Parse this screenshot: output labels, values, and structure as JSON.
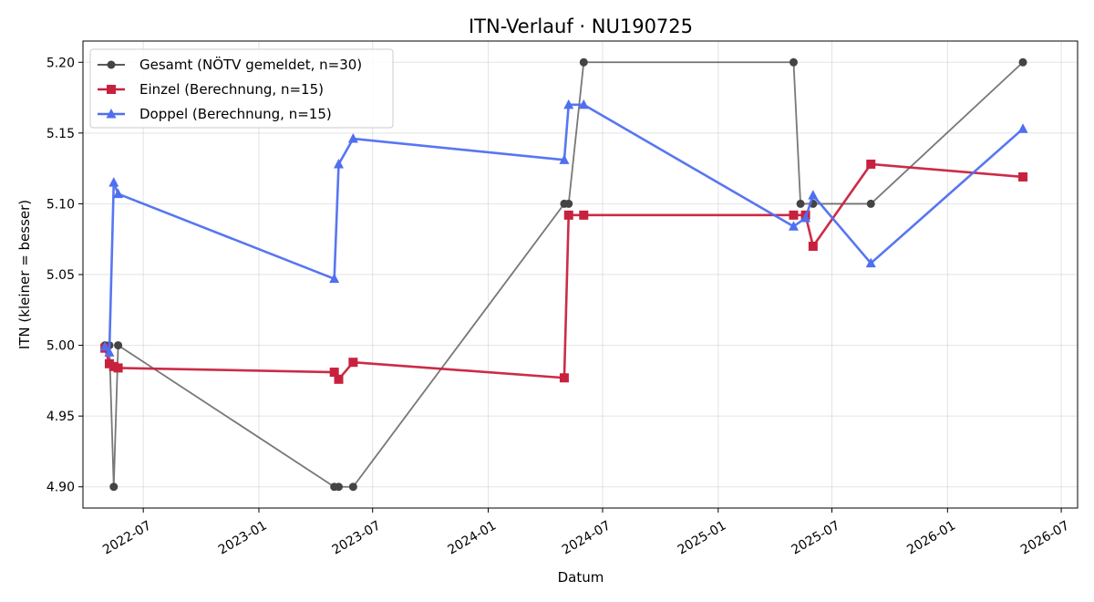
{
  "chart_data": {
    "type": "line",
    "title": "ITN-Verlauf · NU190725",
    "xlabel": "Datum",
    "ylabel": "ITN  (kleiner = besser)",
    "grid": true,
    "legend": "top-left",
    "x_ticks": [
      "2022-07",
      "2023-01",
      "2023-07",
      "2024-01",
      "2024-07",
      "2025-01",
      "2025-07",
      "2026-01",
      "2026-07"
    ],
    "y_ticks": [
      "4.90",
      "4.95",
      "5.00",
      "5.05",
      "5.10",
      "5.15",
      "5.20"
    ],
    "xlim": [
      "2022-03-27",
      "2026-07-27"
    ],
    "ylim": [
      4.885,
      5.215
    ],
    "series": [
      {
        "name": "Gesamt (NÖTV gemeldet, n=30)",
        "color": "#444444",
        "marker": "circle",
        "x": [
          "2022-05-01",
          "2022-05-08",
          "2022-05-15",
          "2022-05-22",
          "2023-05-01",
          "2023-05-08",
          "2023-05-31",
          "2024-05-01",
          "2024-05-08",
          "2024-06-01",
          "2025-05-01",
          "2025-05-12",
          "2025-06-01",
          "2025-09-01",
          "2026-05-01"
        ],
        "y": [
          5.0,
          5.0,
          4.9,
          5.0,
          4.9,
          4.9,
          4.9,
          5.1,
          5.1,
          5.2,
          5.2,
          5.1,
          5.1,
          5.1,
          5.2
        ]
      },
      {
        "name": "Einzel (Berechnung, n=15)",
        "color": "#c8213e",
        "marker": "square",
        "x": [
          "2022-05-01",
          "2022-05-08",
          "2022-05-15",
          "2022-05-22",
          "2023-05-01",
          "2023-05-08",
          "2023-05-31",
          "2024-05-01",
          "2024-05-08",
          "2024-06-01",
          "2025-05-01",
          "2025-05-20",
          "2025-06-01",
          "2025-09-01",
          "2026-05-01"
        ],
        "y": [
          4.998,
          4.987,
          4.985,
          4.984,
          4.981,
          4.976,
          4.988,
          4.977,
          5.092,
          5.092,
          5.092,
          5.092,
          5.07,
          5.128,
          5.119
        ]
      },
      {
        "name": "Doppel (Berechnung, n=15)",
        "color": "#4f6ff0",
        "marker": "triangle",
        "x": [
          "2022-05-01",
          "2022-05-08",
          "2022-05-15",
          "2022-05-22",
          "2023-05-01",
          "2023-05-08",
          "2023-05-31",
          "2024-05-01",
          "2024-05-08",
          "2024-06-01",
          "2025-05-01",
          "2025-05-20",
          "2025-06-01",
          "2025-09-01",
          "2026-05-01"
        ],
        "y": [
          4.999,
          4.995,
          5.115,
          5.107,
          5.047,
          5.128,
          5.146,
          5.131,
          5.17,
          5.17,
          5.084,
          5.09,
          5.106,
          5.058,
          5.153
        ]
      }
    ]
  }
}
